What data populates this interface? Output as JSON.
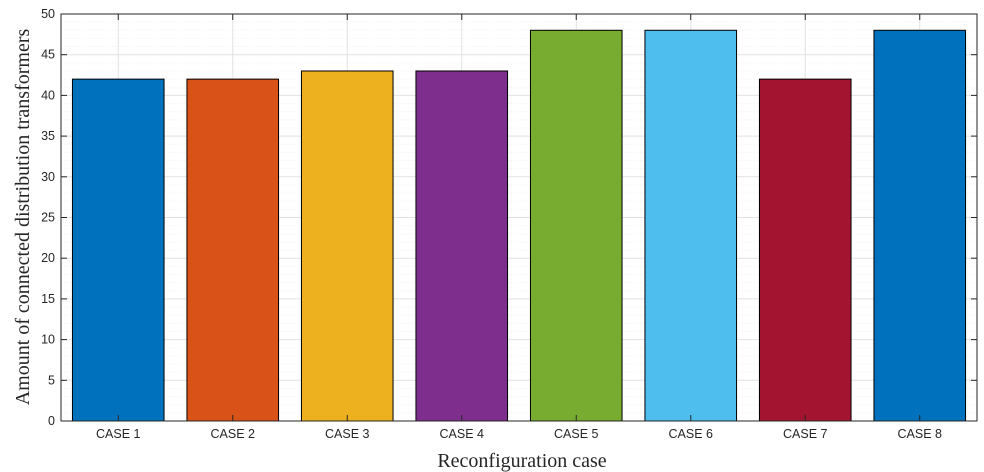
{
  "chart_data": {
    "type": "bar",
    "categories": [
      "CASE 1",
      "CASE 2",
      "CASE 3",
      "CASE 4",
      "CASE 5",
      "CASE 6",
      "CASE 7",
      "CASE 8"
    ],
    "values": [
      42,
      42,
      43,
      43,
      48,
      48,
      42,
      48
    ],
    "colors": [
      "#0072BD",
      "#D95319",
      "#EDB120",
      "#7E2F8E",
      "#77AC30",
      "#4DBEEE",
      "#A2142F",
      "#0072BD"
    ],
    "xlabel": "Reconfiguration case",
    "ylabel": "Amount of connected distribution transformers",
    "ylim": [
      0,
      50
    ],
    "yticks": [
      0,
      5,
      10,
      15,
      20,
      25,
      30,
      35,
      40,
      45,
      50
    ],
    "grid": true,
    "minor_grid": true
  }
}
